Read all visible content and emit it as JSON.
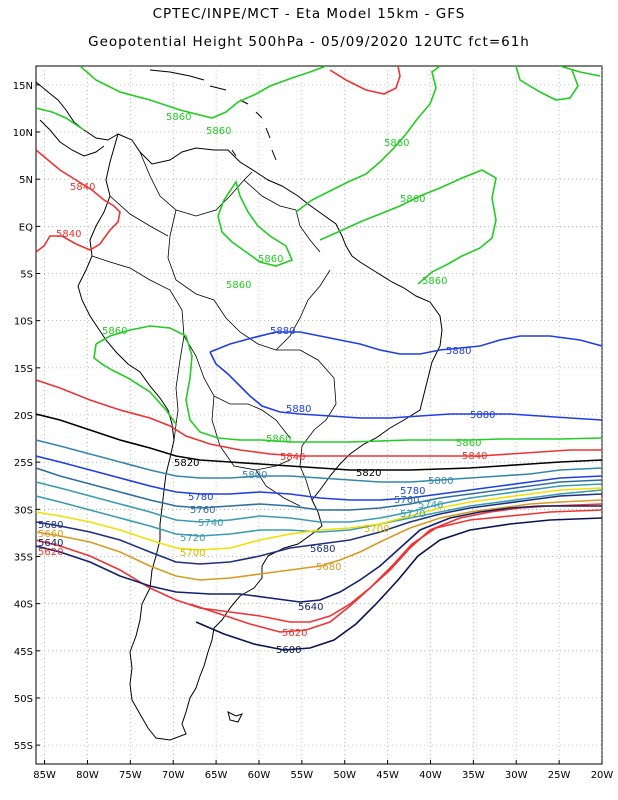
{
  "header": {
    "title_line1": "CPTEC/INPE/MCT -  Eta Model 15km - GFS",
    "title_line2": "Geopotential Height 500hPa - 05/09/2020 12UTC fct=61h"
  },
  "axes": {
    "lon_labels": [
      "85W",
      "80W",
      "75W",
      "70W",
      "65W",
      "60W",
      "55W",
      "50W",
      "45W",
      "40W",
      "35W",
      "30W",
      "25W",
      "20W"
    ],
    "lat_labels": [
      "15N",
      "10N",
      "5N",
      "EQ",
      "5S",
      "10S",
      "15S",
      "20S",
      "25S",
      "30S",
      "35S",
      "40S",
      "45S",
      "50S",
      "55S"
    ],
    "lon_range": [
      -86,
      -20
    ],
    "lat_range": [
      17,
      -57
    ],
    "grid": "dotted"
  },
  "contour_levels": [
    {
      "value": "5880",
      "color": "#1f3fe0"
    },
    {
      "value": "5860",
      "color": "#22cc22"
    },
    {
      "value": "5840",
      "color": "#ee3333"
    },
    {
      "value": "5820",
      "color": "#000000"
    },
    {
      "value": "5800",
      "color": "#3388aa"
    },
    {
      "value": "5780",
      "color": "#1f3fe0"
    },
    {
      "value": "5760",
      "color": "#2f6fa0"
    },
    {
      "value": "5740",
      "color": "#3a9cb0"
    },
    {
      "value": "5720",
      "color": "#3a9cb0"
    },
    {
      "value": "5700",
      "color": "#f0e000"
    },
    {
      "value": "5680",
      "color": "#d89a22"
    },
    {
      "value": "5660",
      "color": "#ee3333"
    },
    {
      "value": "5640",
      "color": "#102070"
    },
    {
      "value": "5620",
      "color": "#ee3333"
    },
    {
      "value": "5600",
      "color": "#0a1550"
    }
  ]
}
